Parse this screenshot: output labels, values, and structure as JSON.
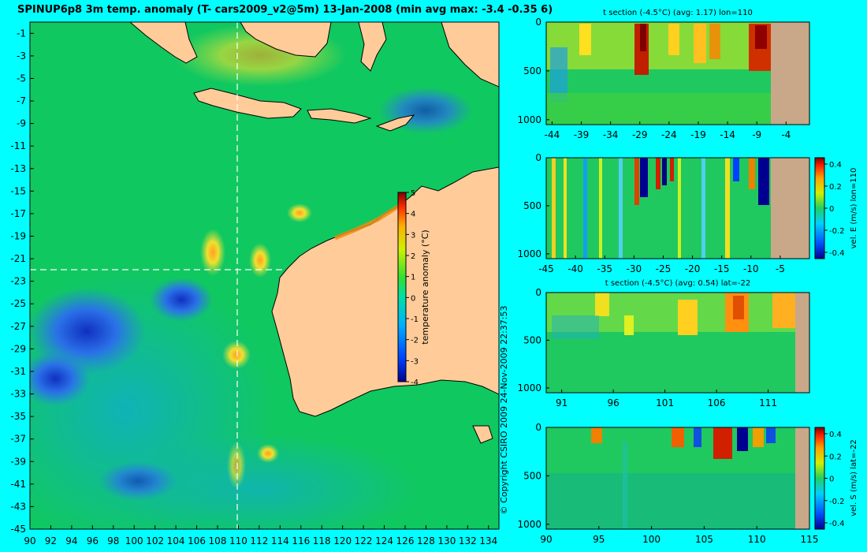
{
  "title": "SPINUP6p8 3m temp. anomaly (T- cars2009_v2@5m) 13-Jan-2008 (min avg max: -3.4 -0.35 6)",
  "copyright": "© Copyright CSIRO 2009   24-Nov-2009 22:37:53",
  "chart_data": [
    {
      "type": "heatmap",
      "name": "map",
      "x_ticks": [
        90,
        92,
        94,
        96,
        98,
        100,
        102,
        104,
        106,
        108,
        110,
        112,
        114,
        116,
        118,
        120,
        122,
        124,
        126,
        128,
        130,
        132,
        134
      ],
      "y_ticks": [
        -1,
        -3,
        -5,
        -7,
        -9,
        -11,
        -13,
        -15,
        -17,
        -19,
        -21,
        -23,
        -25,
        -27,
        -29,
        -31,
        -33,
        -35,
        -37,
        -39,
        -41,
        -43,
        -45
      ],
      "xlim": [
        90,
        135
      ],
      "ylim": [
        -45,
        0
      ],
      "section_lon": 110,
      "section_lat": -22,
      "colorbar": {
        "label": "temperature anomaly (°C)",
        "ticks": [
          5,
          4,
          3,
          2,
          1,
          0,
          -1,
          -2,
          -3,
          -4
        ],
        "range": [
          -4,
          5
        ]
      },
      "colors": {
        "land": "#ffcc99",
        "base": "#10c860",
        "cold": "#1e5fd8",
        "warm": "#f0e020",
        "coast_hot": "#e86a10"
      }
    },
    {
      "type": "heatmap",
      "name": "panel1",
      "title": "t section (-4.5°C) (avg: 1.17) lon=110",
      "x_ticks": [
        -44,
        -39,
        -34,
        -29,
        -24,
        -19,
        -14,
        -9,
        -4
      ],
      "y_ticks": [
        0,
        500,
        1000
      ],
      "xlim": [
        -45,
        0
      ],
      "ylim": [
        1050,
        0
      ],
      "land_from_x": -8
    },
    {
      "type": "heatmap",
      "name": "panel2",
      "title": "",
      "x_ticks": [
        -45,
        -40,
        -35,
        -30,
        -25,
        -20,
        -15,
        -10,
        -5
      ],
      "y_ticks": [
        0,
        500,
        1000
      ],
      "xlim": [
        -45,
        0
      ],
      "ylim": [
        1050,
        0
      ],
      "land_from_x": -8,
      "colorbar": {
        "label": "vel. E (m/s) lon=110",
        "ticks": [
          "0.4",
          "0.2",
          "0",
          "-0.2",
          "-0.4"
        ]
      }
    },
    {
      "type": "heatmap",
      "name": "panel3",
      "title": "t section (-4.5°C) (avg: 0.54) lat=-22",
      "x_ticks": [
        91,
        96,
        101,
        106,
        111
      ],
      "y_ticks": [
        0,
        500,
        1000
      ],
      "xlim": [
        89.5,
        115
      ],
      "ylim": [
        1050,
        0
      ],
      "land_from_x": 114
    },
    {
      "type": "heatmap",
      "name": "panel4",
      "title": "",
      "x_ticks": [
        90,
        95,
        100,
        105,
        110,
        115
      ],
      "y_ticks": [
        0,
        500,
        1000
      ],
      "xlim": [
        90,
        115
      ],
      "ylim": [
        1050,
        0
      ],
      "land_from_x": 114,
      "colorbar": {
        "label": "vel. S (m/s) lat=-22",
        "ticks": [
          "0.4",
          "0.2",
          "0",
          "-0.2",
          "-0.4"
        ]
      }
    }
  ]
}
